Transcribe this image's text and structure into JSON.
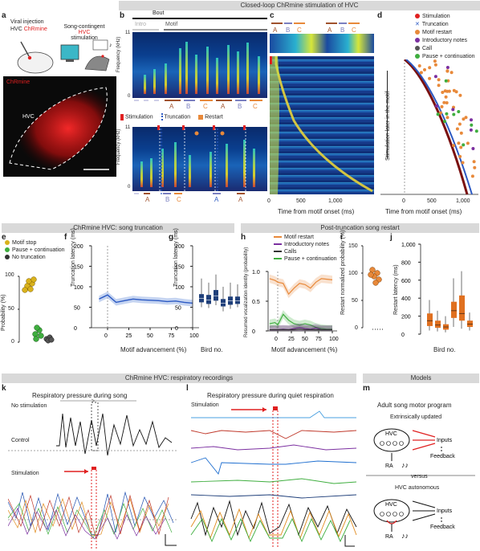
{
  "banners": {
    "top": "Closed-loop ChRmine stimulation of HVC",
    "mid_left": "ChRmine HVC: song truncation",
    "mid_right": "Post-truncation song restart",
    "bottom_left": "ChRmine HVC: respiratory recordings",
    "bottom_right": "Models"
  },
  "panel_letters": [
    "a",
    "b",
    "c",
    "d",
    "e",
    "f",
    "g",
    "h",
    "i",
    "j",
    "k",
    "l",
    "m"
  ],
  "panel_a": {
    "viral_injection": "Viral injection",
    "hvc_chrmine": "HVC",
    "chrmine": "ChRmine",
    "song_contingent": "Song-contingent",
    "hvc_stim_hvc": "HVC",
    "hvc_stim_word": "stimulation",
    "micro_label": "ChRmine",
    "hvc_label": "HVC"
  },
  "panel_b": {
    "bout": "Bout",
    "intro": "Intro",
    "motif": "Motif",
    "ylabel": "Frequency (kHz)",
    "ytick_top": "11",
    "ytick_bottom": "0",
    "syllables_top": [
      "A",
      "B",
      "C",
      "A",
      "B",
      "C"
    ],
    "legend_stim": "Stimulation",
    "legend_trunc": "Truncation",
    "legend_restart": "Restart",
    "syllables_bottom": [
      "A",
      "B",
      "C",
      "A",
      "A"
    ]
  },
  "panel_c": {
    "syllables": [
      "A",
      "B",
      "C",
      "A",
      "B",
      "C"
    ],
    "xticks": [
      "0",
      "500",
      "1,000"
    ],
    "xlabel": "Time from motif onset (ms)"
  },
  "panel_d": {
    "legend": [
      {
        "label": "Stimulation",
        "color": "#e02020",
        "shape": "dot"
      },
      {
        "label": "Truncation",
        "color": "#2b59c3",
        "shape": "x"
      },
      {
        "label": "Motif restart",
        "color": "#e8893a",
        "shape": "dot"
      },
      {
        "label": "Introductory notes",
        "color": "#7b2fa0",
        "shape": "dot"
      },
      {
        "label": "Call",
        "color": "#555555",
        "shape": "dot"
      },
      {
        "label": "Pause + continuation",
        "color": "#3fae3f",
        "shape": "dot"
      }
    ],
    "ylabel": "Stimulation later in the motif",
    "xticks": [
      "0",
      "500",
      "1,000"
    ],
    "xlabel": "Time from motif onset (ms)"
  },
  "panel_e": {
    "legend": [
      {
        "label": "Motif stop",
        "color": "#d9b21c"
      },
      {
        "label": "Pause + continuation",
        "color": "#3fae3f"
      },
      {
        "label": "No truncation",
        "color": "#333333"
      }
    ],
    "ylabel": "Probability (%)",
    "yticks": [
      "100",
      "50",
      "0"
    ]
  },
  "panel_f": {
    "ylabel": "Truncation latency (ms)",
    "xlabel": "Motif advancement (%)",
    "yticks": [
      "200",
      "150",
      "100",
      "50",
      "0"
    ],
    "xticks": [
      "0",
      "25",
      "50",
      "75",
      "100"
    ]
  },
  "panel_g": {
    "ylabel": "Truncation latency (ms)",
    "xlabel": "Bird no.",
    "yticks": [
      "200",
      "150",
      "100",
      "50",
      "0"
    ]
  },
  "panel_h": {
    "legend": [
      {
        "label": "Motif restart",
        "color": "#e8893a"
      },
      {
        "label": "Introductory notes",
        "color": "#7b2fa0"
      },
      {
        "label": "Calls",
        "color": "#333333"
      },
      {
        "label": "Pause + continuation",
        "color": "#3fae3f"
      }
    ],
    "ylabel": "Resumed vocalization identity (probability)",
    "xlabel": "Motif advancement (%)",
    "yticks": [
      "1.0",
      "0.5",
      "0"
    ],
    "xticks": [
      "0",
      "25",
      "50",
      "75",
      "100"
    ]
  },
  "panel_i": {
    "ylabel": "Restart normalized probability (%)",
    "yticks": [
      "150",
      "100",
      "50",
      "0"
    ]
  },
  "panel_j": {
    "ylabel": "Restart latency (ms)",
    "xlabel": "Bird no.",
    "yticks": [
      "1,000",
      "800",
      "600",
      "400",
      "200",
      "0"
    ]
  },
  "panel_k": {
    "title": "Respiratory pressure during song",
    "no_stim": "No stimulation",
    "control": "Control",
    "stimulation": "Stimulation"
  },
  "panel_l": {
    "title": "Respiratory pressure during quiet respiration",
    "stimulation": "Stimulation"
  },
  "panel_m": {
    "title": "Adult song motor program",
    "extrinsic": "Extrinsically updated",
    "versus": "versus",
    "autonomous": "HVC autonomous",
    "hvc": "HVC",
    "inputs": "Inputs",
    "feedback": "Feedback",
    "ra": "RA"
  },
  "colors": {
    "banner": "#d9d9d9",
    "stimulation": "#e02020",
    "truncation": "#2b59c3",
    "restart": "#e8893a",
    "boxes_g": "#1f3f7a",
    "boxes_j": "#e07020"
  }
}
